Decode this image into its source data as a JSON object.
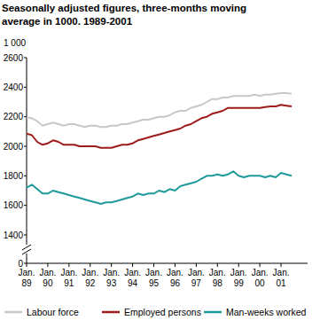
{
  "chart_data": {
    "type": "line",
    "title": "Seasonally adjusted figures, three-months moving average in 1000. 1989-2001",
    "ylabel": "1 000",
    "categories": [
      "Jan. 89",
      null,
      null,
      null,
      "Jan. 90",
      null,
      null,
      null,
      "Jan. 91",
      null,
      null,
      null,
      "Jan. 92",
      null,
      null,
      null,
      "Jan. 93",
      null,
      null,
      null,
      "Jan. 94",
      null,
      null,
      null,
      "Jan. 95",
      null,
      null,
      null,
      "Jan. 96",
      null,
      null,
      null,
      "Jan. 97",
      null,
      null,
      null,
      "Jan. 98",
      null,
      null,
      null,
      "Jan. 99",
      null,
      null,
      null,
      "Jan. 00",
      null,
      null,
      null,
      "Jan. 01",
      null,
      null
    ],
    "series": [
      {
        "name": "Labour force",
        "color": "#c8c8c8",
        "values": [
          2195,
          2190,
          2170,
          2140,
          2150,
          2160,
          2150,
          2140,
          2150,
          2150,
          2140,
          2130,
          2140,
          2140,
          2130,
          2130,
          2140,
          2140,
          2150,
          2150,
          2160,
          2170,
          2180,
          2180,
          2190,
          2200,
          2200,
          2210,
          2230,
          2240,
          2240,
          2260,
          2270,
          2280,
          2300,
          2320,
          2320,
          2330,
          2330,
          2340,
          2340,
          2340,
          2340,
          2350,
          2340,
          2350,
          2350,
          2355,
          2360,
          2360,
          2355
        ]
      },
      {
        "name": "Employed persons",
        "color": "#9e1b1b",
        "values": [
          2085,
          2075,
          2030,
          2010,
          2020,
          2040,
          2030,
          2010,
          2010,
          2010,
          2000,
          2000,
          2000,
          2000,
          1990,
          1990,
          1990,
          2000,
          2010,
          2010,
          2020,
          2040,
          2050,
          2060,
          2070,
          2080,
          2090,
          2100,
          2110,
          2120,
          2140,
          2150,
          2170,
          2190,
          2200,
          2220,
          2230,
          2240,
          2260,
          2260,
          2260,
          2260,
          2260,
          2260,
          2260,
          2265,
          2270,
          2270,
          2280,
          2275,
          2270
        ]
      },
      {
        "name": "Man-weeks worked",
        "color": "#1f9a9a",
        "values": [
          1720,
          1740,
          1710,
          1680,
          1680,
          1700,
          1690,
          1680,
          1670,
          1660,
          1650,
          1640,
          1630,
          1620,
          1610,
          1620,
          1620,
          1630,
          1640,
          1650,
          1660,
          1680,
          1670,
          1680,
          1680,
          1700,
          1690,
          1710,
          1700,
          1730,
          1740,
          1750,
          1760,
          1780,
          1800,
          1800,
          1810,
          1800,
          1810,
          1830,
          1800,
          1790,
          1800,
          1800,
          1800,
          1790,
          1800,
          1790,
          1820,
          1810,
          1800
        ]
      }
    ],
    "ylim": [
      0,
      2600
    ],
    "yticks": [
      0,
      1400,
      1600,
      1800,
      2000,
      2200,
      2400,
      2600
    ],
    "grid": false,
    "legend": "bottom"
  }
}
